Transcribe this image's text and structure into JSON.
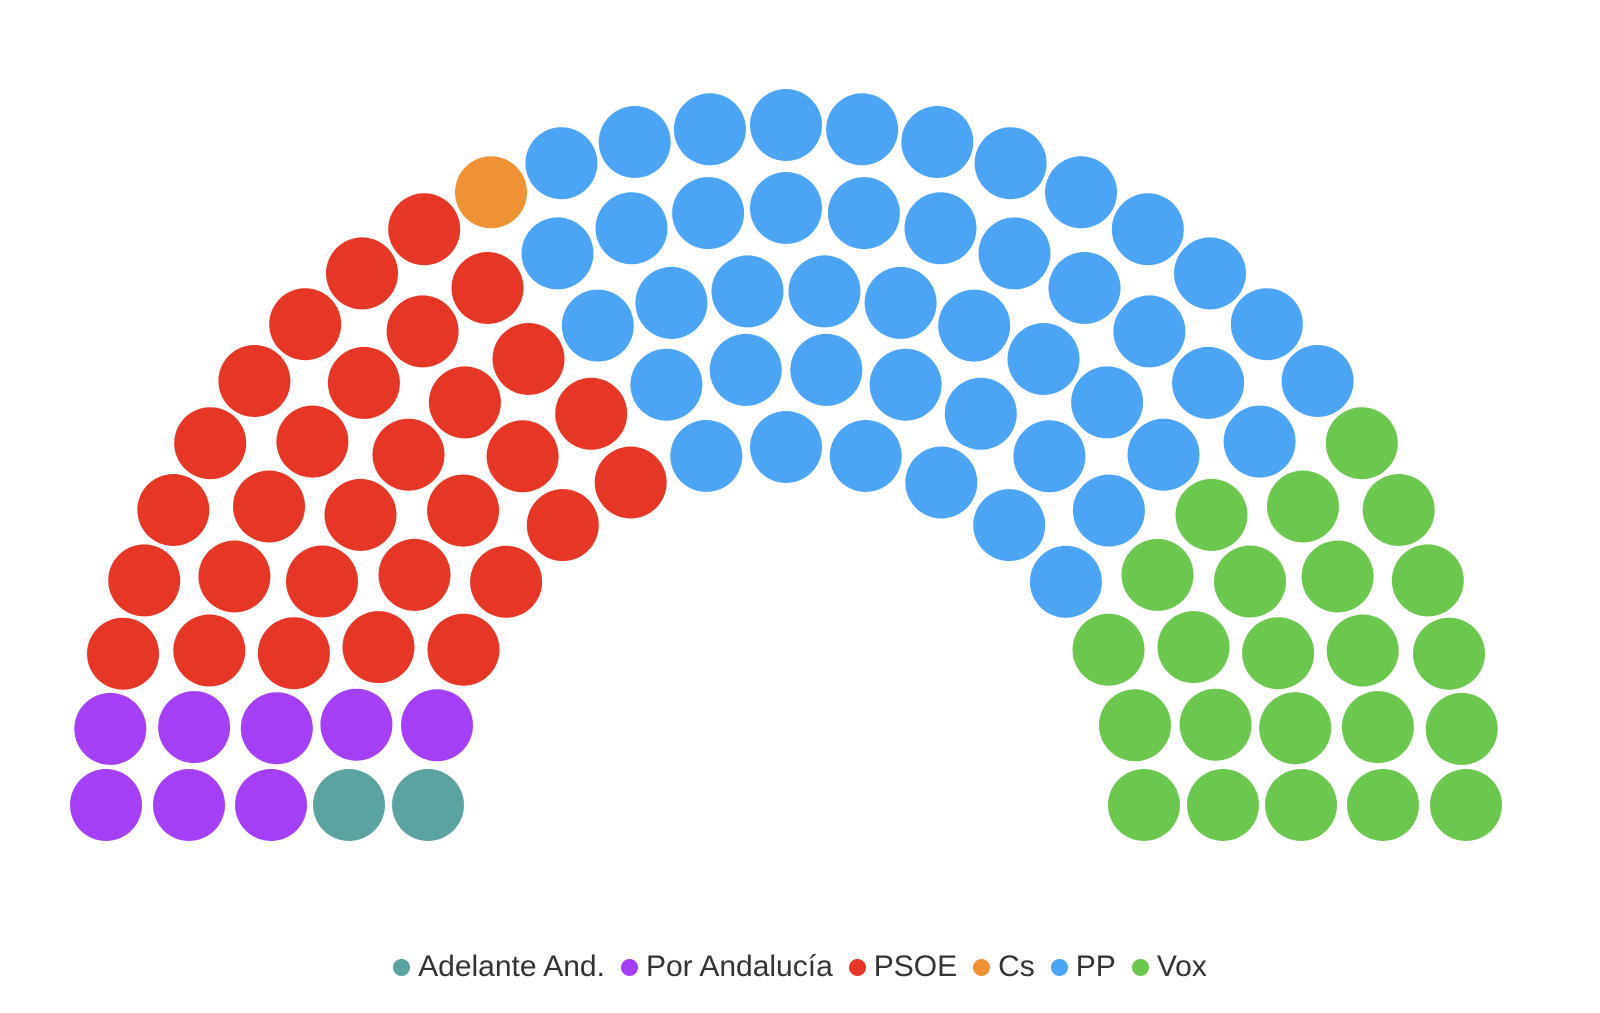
{
  "chart_data": {
    "type": "parliament",
    "total_seats": 109,
    "series": [
      {
        "name": "Adelante And.",
        "seats": 2,
        "color": "#5ba3a0"
      },
      {
        "name": "Por Andalucía",
        "seats": 8,
        "color": "#a43ff5"
      },
      {
        "name": "PSOE",
        "seats": 30,
        "color": "#e63625"
      },
      {
        "name": "Cs",
        "seats": 1,
        "color": "#ef9236"
      },
      {
        "name": "PP",
        "seats": 45,
        "color": "#4ca4f5"
      },
      {
        "name": "Vox",
        "seats": 23,
        "color": "#6cc74f"
      }
    ],
    "legend_position": "bottom-center"
  }
}
